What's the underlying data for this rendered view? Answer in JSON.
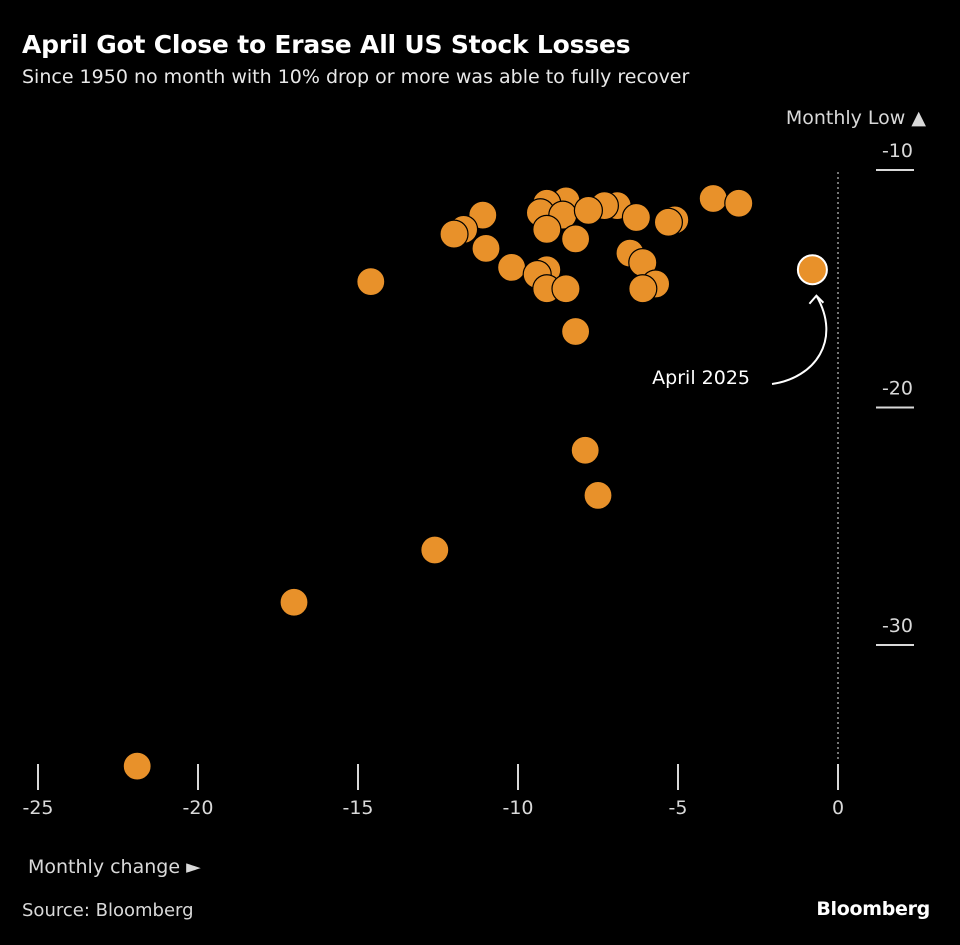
{
  "header": {
    "title": "April Got Close to Erase All US Stock Losses",
    "subtitle": "Since 1950 no month with 10% drop or more was able to fully recover"
  },
  "footer": {
    "source": "Source: Bloomberg",
    "brand": "Bloomberg"
  },
  "colors": {
    "background": "#000000",
    "point": "#e8912a",
    "point_stroke": "#f5c98a",
    "text": "#ffffff",
    "axis": "#d9d9d9"
  },
  "chart_data": {
    "type": "scatter",
    "title": "April Got Close to Erase All US Stock Losses",
    "subtitle": "Since 1950 no month with 10% drop or more was able to fully recover",
    "xlabel": "Monthly change ►",
    "ylabel": "Monthly Low ▲",
    "xlim": [
      -25,
      0
    ],
    "ylim": [
      -33,
      -10
    ],
    "x_ticks": [
      -25,
      -20,
      -15,
      -10,
      -5,
      0
    ],
    "x_tick_labels": [
      "-25",
      "-20",
      "-15",
      "-10",
      "-5",
      "0"
    ],
    "y_ticks": [
      -10,
      -20,
      -30
    ],
    "y_tick_labels": [
      "-10",
      "-20",
      "-30"
    ],
    "grid": false,
    "reference_line": {
      "axis": "x",
      "value": 0,
      "style": "dotted"
    },
    "points": [
      {
        "x": -3.9,
        "y": -11.2
      },
      {
        "x": -3.1,
        "y": -11.4
      },
      {
        "x": -6.9,
        "y": -11.5
      },
      {
        "x": -7.3,
        "y": -11.5
      },
      {
        "x": -8.5,
        "y": -11.3
      },
      {
        "x": -9.1,
        "y": -11.4
      },
      {
        "x": -9.3,
        "y": -11.8
      },
      {
        "x": -8.6,
        "y": -11.9
      },
      {
        "x": -7.8,
        "y": -11.7
      },
      {
        "x": -11.1,
        "y": -11.9
      },
      {
        "x": -6.3,
        "y": -12.0
      },
      {
        "x": -5.1,
        "y": -12.1
      },
      {
        "x": -5.3,
        "y": -12.2
      },
      {
        "x": -9.1,
        "y": -12.5
      },
      {
        "x": -11.7,
        "y": -12.5
      },
      {
        "x": -12.0,
        "y": -12.7
      },
      {
        "x": -8.2,
        "y": -12.9
      },
      {
        "x": -11.0,
        "y": -13.3
      },
      {
        "x": -6.5,
        "y": -13.5
      },
      {
        "x": -6.1,
        "y": -13.9
      },
      {
        "x": -10.2,
        "y": -14.1
      },
      {
        "x": -9.1,
        "y": -14.2
      },
      {
        "x": -9.4,
        "y": -14.4
      },
      {
        "x": -14.6,
        "y": -14.7
      },
      {
        "x": -5.7,
        "y": -14.8
      },
      {
        "x": -6.1,
        "y": -15.0
      },
      {
        "x": -9.1,
        "y": -15.0
      },
      {
        "x": -8.5,
        "y": -15.0
      },
      {
        "x": -8.2,
        "y": -16.8
      },
      {
        "x": -7.9,
        "y": -21.8
      },
      {
        "x": -7.5,
        "y": -23.7
      },
      {
        "x": -12.6,
        "y": -26.0
      },
      {
        "x": -17.0,
        "y": -28.2
      },
      {
        "x": -21.9,
        "y": -35.1
      }
    ],
    "highlight": {
      "x": -0.8,
      "y": -14.2,
      "label": "April 2025"
    }
  }
}
